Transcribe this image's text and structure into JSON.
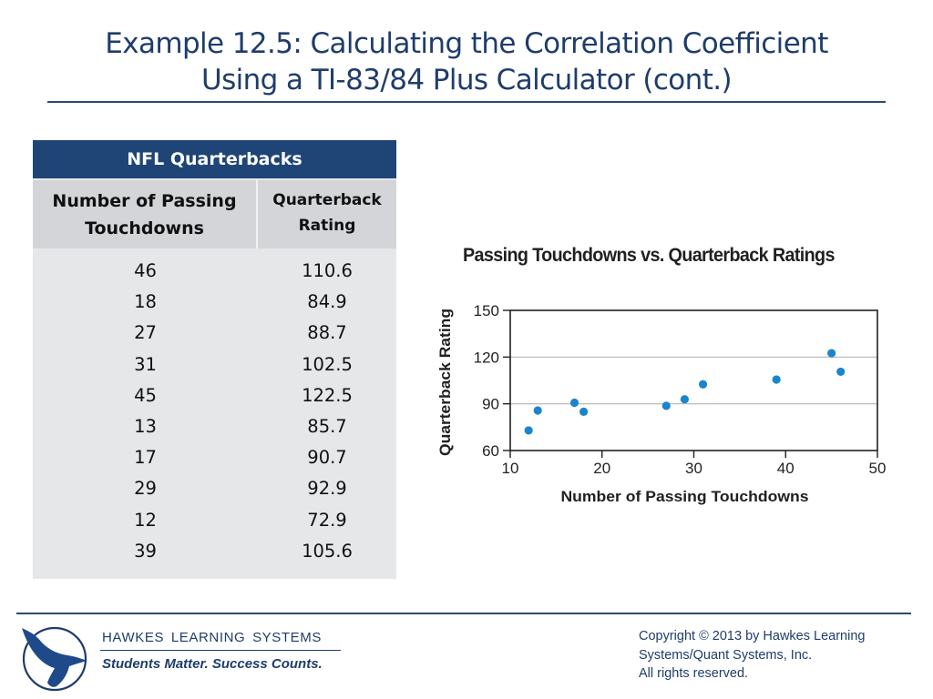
{
  "slide": {
    "title_line1": "Example 12.5: Calculating the Correlation Coefficient",
    "title_line2": "Using a TI-83/84 Plus Calculator (cont.)"
  },
  "table": {
    "title": "NFL Quarterbacks",
    "headers": [
      "Number of Passing Touchdowns",
      "Quarterback Rating"
    ],
    "header1_lines": [
      "Number of Passing",
      "Touchdowns"
    ],
    "header2_lines": [
      "Quarterback",
      "Rating"
    ],
    "rows": [
      [
        "46",
        "110.6"
      ],
      [
        "18",
        "84.9"
      ],
      [
        "27",
        "88.7"
      ],
      [
        "31",
        "102.5"
      ],
      [
        "45",
        "122.5"
      ],
      [
        "13",
        "85.7"
      ],
      [
        "17",
        "90.7"
      ],
      [
        "29",
        "92.9"
      ],
      [
        "12",
        "72.9"
      ],
      [
        "39",
        "105.6"
      ]
    ]
  },
  "chart_data": {
    "type": "scatter",
    "title": "Passing Touchdowns vs. Quarterback Ratings",
    "xlabel": "Number of Passing Touchdowns",
    "ylabel": "Quarterback Rating",
    "xlim": [
      10,
      50
    ],
    "ylim": [
      60,
      150
    ],
    "xticks": [
      10,
      20,
      30,
      40,
      50
    ],
    "yticks": [
      60,
      90,
      120,
      150
    ],
    "grid": "horizontal",
    "legend": "none",
    "point_color": "#1a85cc",
    "points": [
      {
        "x": 46,
        "y": 110.6
      },
      {
        "x": 18,
        "y": 84.9
      },
      {
        "x": 27,
        "y": 88.7
      },
      {
        "x": 31,
        "y": 102.5
      },
      {
        "x": 45,
        "y": 122.5
      },
      {
        "x": 13,
        "y": 85.7
      },
      {
        "x": 17,
        "y": 90.7
      },
      {
        "x": 29,
        "y": 92.9
      },
      {
        "x": 12,
        "y": 72.9
      },
      {
        "x": 39,
        "y": 105.6
      }
    ]
  },
  "footer": {
    "brand_name": "HAWKES LEARNING SYSTEMS",
    "tagline": "Students Matter. Success Counts.",
    "copyright_lines": [
      "Copyright © 2013 by Hawkes Learning",
      "Systems/Quant Systems, Inc.",
      "All rights reserved."
    ],
    "logo_icon": "hawk-logo-icon"
  },
  "colors": {
    "title": "#1f3d6b",
    "table_header": "#1f4577",
    "table_subheader": "#d3d5d9",
    "table_body": "#e6e7e9",
    "point": "#1a85cc"
  }
}
